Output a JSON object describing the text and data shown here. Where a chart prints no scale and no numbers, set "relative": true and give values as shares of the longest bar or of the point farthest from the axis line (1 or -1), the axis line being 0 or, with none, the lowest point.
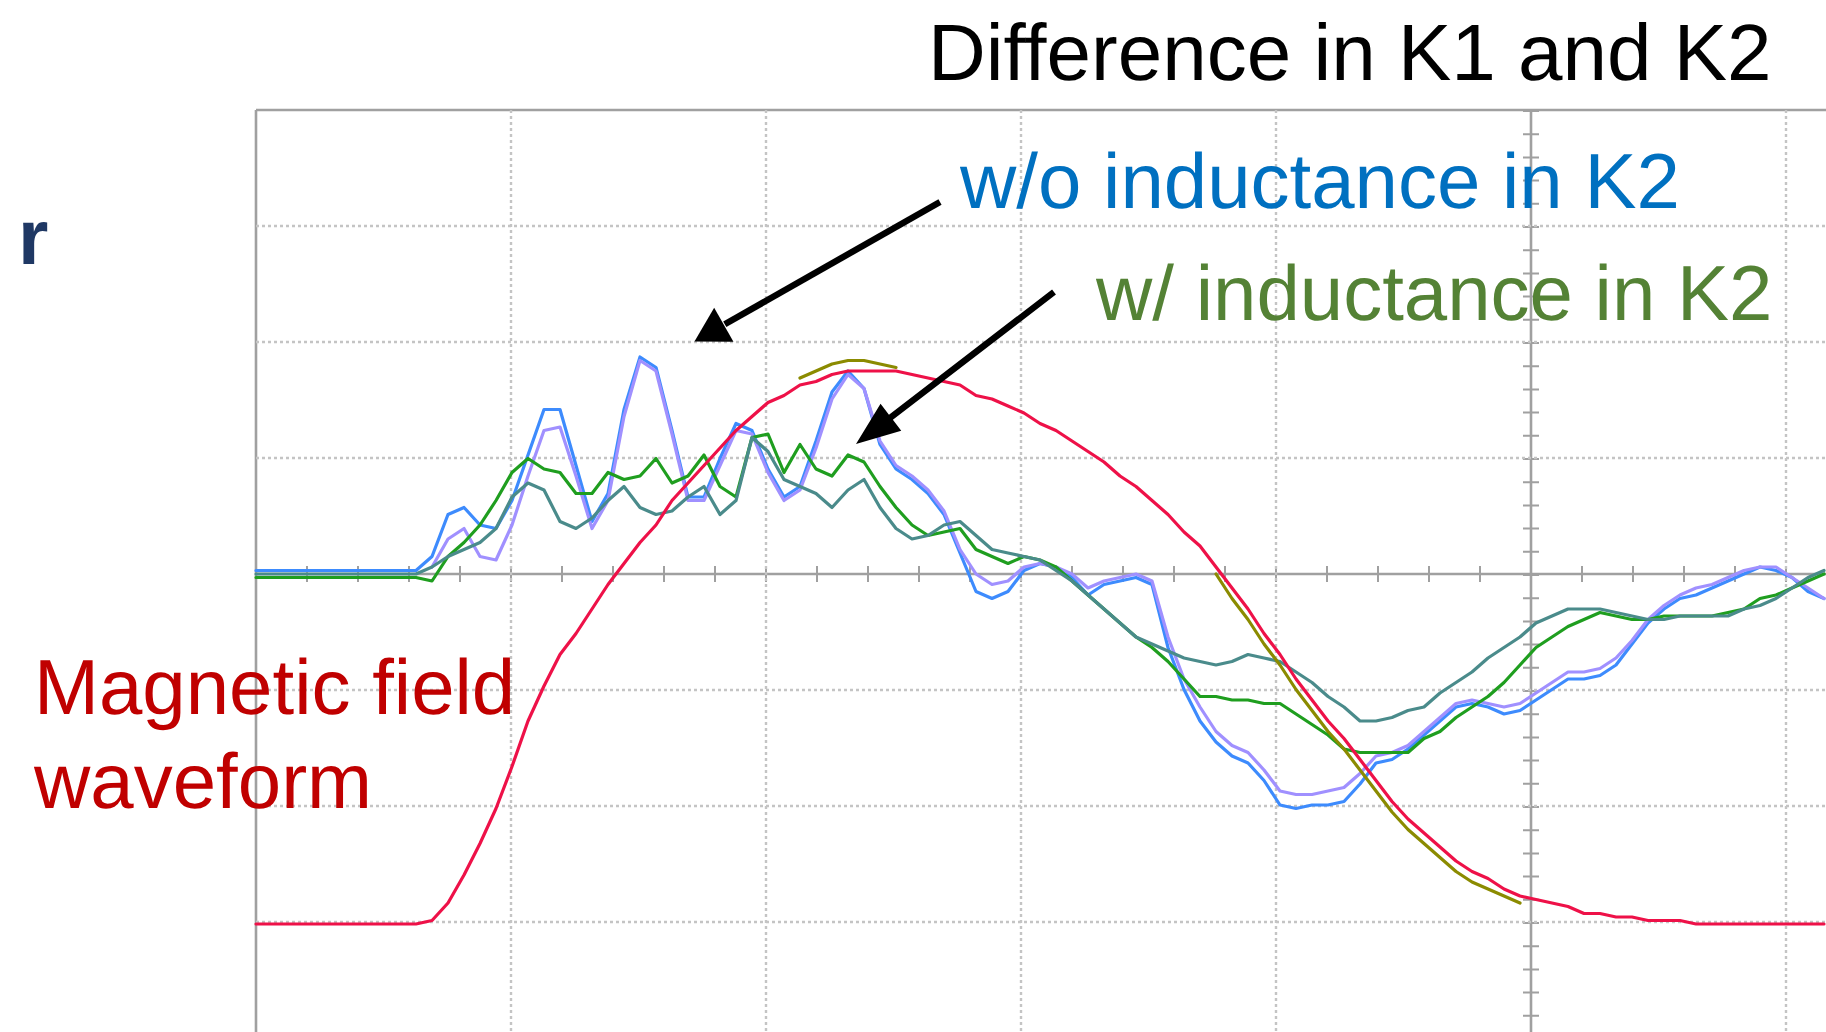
{
  "chart_data": {
    "type": "line",
    "title": "Difference in K1 and K2",
    "relative": true,
    "grid": true,
    "categories": [
      null,
      null,
      null,
      null,
      null,
      null,
      null,
      null,
      null,
      null,
      null,
      null,
      null,
      null,
      null,
      null,
      null,
      null,
      null,
      null,
      null,
      null,
      null,
      null,
      null,
      null,
      null,
      null,
      null,
      null,
      null,
      null,
      null,
      null,
      null,
      null,
      null,
      null,
      null,
      null,
      null,
      null,
      null,
      null,
      null,
      null,
      null,
      null,
      null,
      null,
      null,
      null,
      null,
      null,
      null,
      null,
      null,
      null,
      null,
      null,
      null,
      null,
      null,
      null,
      null,
      null,
      null,
      null,
      null,
      null,
      null,
      null,
      null,
      null,
      null,
      null,
      null,
      null,
      null,
      null,
      null,
      null,
      null,
      null,
      null,
      null,
      null,
      null,
      null,
      null,
      null,
      null,
      null,
      null,
      null,
      null,
      null,
      null,
      null
    ],
    "series": [
      {
        "color": "#3d8bfd",
        "values": [
          0.01,
          0.01,
          0.01,
          0.01,
          0.01,
          0.01,
          0.01,
          0.01,
          0.01,
          0.01,
          0.01,
          0.05,
          0.17,
          0.19,
          0.14,
          0.13,
          0.21,
          0.34,
          0.47,
          0.47,
          0.31,
          0.15,
          0.23,
          0.47,
          0.62,
          0.59,
          0.41,
          0.22,
          0.22,
          0.33,
          0.43,
          0.41,
          0.3,
          0.22,
          0.25,
          0.38,
          0.52,
          0.58,
          0.53,
          0.37,
          0.3,
          0.27,
          0.23,
          0.17,
          0.06,
          -0.05,
          -0.07,
          -0.05,
          0.01,
          0.03,
          0.02,
          -0.01,
          -0.06,
          -0.03,
          -0.02,
          -0.01,
          -0.03,
          -0.21,
          -0.33,
          -0.42,
          -0.48,
          -0.52,
          -0.54,
          -0.59,
          -0.66,
          -0.67,
          -0.66,
          -0.66,
          -0.65,
          -0.6,
          -0.54,
          -0.53,
          -0.5,
          -0.46,
          -0.42,
          -0.38,
          -0.37,
          -0.38,
          -0.4,
          -0.39,
          -0.36,
          -0.33,
          -0.3,
          -0.3,
          -0.29,
          -0.26,
          -0.2,
          -0.14,
          -0.1,
          -0.07,
          -0.06,
          -0.04,
          -0.02,
          0.0,
          0.02,
          0.01,
          -0.01,
          -0.05,
          -0.07
        ]
      },
      {
        "color": "#a090ff",
        "values": [
          null,
          null,
          null,
          null,
          null,
          null,
          null,
          null,
          null,
          null,
          null,
          0.02,
          0.1,
          0.13,
          0.05,
          0.04,
          0.14,
          0.28,
          0.41,
          0.42,
          0.28,
          0.13,
          0.21,
          0.45,
          0.61,
          0.58,
          0.4,
          0.21,
          0.21,
          0.31,
          0.41,
          0.4,
          0.29,
          0.21,
          0.24,
          0.36,
          0.5,
          0.57,
          0.53,
          0.38,
          0.31,
          0.28,
          0.24,
          0.18,
          0.07,
          0.0,
          -0.03,
          -0.02,
          0.02,
          0.03,
          0.02,
          0.0,
          -0.04,
          -0.02,
          -0.01,
          0.0,
          -0.02,
          -0.18,
          -0.3,
          -0.38,
          -0.45,
          -0.49,
          -0.51,
          -0.56,
          -0.62,
          -0.63,
          -0.63,
          -0.62,
          -0.61,
          -0.57,
          -0.52,
          -0.51,
          -0.49,
          -0.45,
          -0.41,
          -0.37,
          -0.36,
          -0.37,
          -0.38,
          -0.37,
          -0.34,
          -0.31,
          -0.28,
          -0.28,
          -0.27,
          -0.24,
          -0.19,
          -0.13,
          -0.09,
          -0.06,
          -0.04,
          -0.03,
          -0.01,
          0.01,
          0.02,
          0.02,
          -0.01,
          -0.04,
          -0.07
        ]
      },
      {
        "color": "#1f9e1f",
        "values": [
          -0.01,
          -0.01,
          -0.01,
          -0.01,
          -0.01,
          -0.01,
          -0.01,
          -0.01,
          -0.01,
          -0.01,
          -0.01,
          -0.02,
          0.05,
          0.09,
          0.14,
          0.21,
          0.29,
          0.33,
          0.3,
          0.29,
          0.23,
          0.23,
          0.29,
          0.27,
          0.28,
          0.33,
          0.26,
          0.28,
          0.34,
          0.25,
          0.22,
          0.39,
          0.4,
          0.29,
          0.37,
          0.3,
          0.28,
          0.34,
          0.32,
          0.25,
          0.19,
          0.14,
          0.11,
          0.12,
          0.13,
          0.07,
          0.05,
          0.03,
          0.05,
          0.04,
          0.02,
          -0.02,
          -0.06,
          -0.1,
          -0.14,
          -0.18,
          -0.21,
          -0.25,
          -0.3,
          -0.35,
          -0.35,
          -0.36,
          -0.36,
          -0.37,
          -0.37,
          -0.4,
          -0.43,
          -0.46,
          -0.5,
          -0.51,
          -0.51,
          -0.51,
          -0.51,
          -0.47,
          -0.45,
          -0.41,
          -0.38,
          -0.35,
          -0.31,
          -0.26,
          -0.21,
          -0.18,
          -0.15,
          -0.13,
          -0.11,
          -0.12,
          -0.13,
          -0.13,
          -0.12,
          -0.12,
          -0.12,
          -0.12,
          -0.11,
          -0.1,
          -0.07,
          -0.06,
          -0.04,
          -0.02,
          0.0
        ]
      },
      {
        "color": "#4a8b8b",
        "values": [
          0,
          0,
          0,
          0,
          0,
          0,
          0,
          0,
          0,
          0,
          0,
          0.02,
          0.05,
          0.07,
          0.09,
          0.13,
          0.22,
          0.26,
          0.24,
          0.15,
          0.13,
          0.16,
          0.21,
          0.25,
          0.19,
          0.17,
          0.18,
          0.22,
          0.25,
          0.17,
          0.21,
          0.39,
          0.35,
          0.27,
          0.25,
          0.23,
          0.19,
          0.24,
          0.27,
          0.19,
          0.13,
          0.1,
          0.11,
          0.14,
          0.15,
          0.11,
          0.07,
          0.06,
          0.05,
          0.04,
          0.01,
          -0.02,
          -0.06,
          -0.1,
          -0.14,
          -0.18,
          -0.2,
          -0.22,
          -0.24,
          -0.25,
          -0.26,
          -0.25,
          -0.23,
          -0.24,
          -0.25,
          -0.28,
          -0.31,
          -0.35,
          -0.38,
          -0.42,
          -0.42,
          -0.41,
          -0.39,
          -0.38,
          -0.34,
          -0.31,
          -0.28,
          -0.24,
          -0.21,
          -0.18,
          -0.14,
          -0.12,
          -0.1,
          -0.1,
          -0.1,
          -0.11,
          -0.12,
          -0.13,
          -0.13,
          -0.12,
          -0.12,
          -0.12,
          -0.12,
          -0.1,
          -0.09,
          -0.07,
          -0.04,
          -0.01,
          0.01
        ]
      },
      {
        "color": "#8b8b00",
        "values": [
          null,
          null,
          null,
          null,
          null,
          null,
          null,
          null,
          null,
          null,
          null,
          null,
          null,
          null,
          null,
          null,
          null,
          null,
          null,
          null,
          null,
          null,
          null,
          null,
          null,
          null,
          null,
          null,
          null,
          null,
          null,
          null,
          null,
          null,
          0.56,
          0.58,
          0.6,
          0.61,
          0.61,
          0.6,
          0.59,
          null,
          null,
          null,
          null,
          null,
          null,
          null,
          null,
          null,
          null,
          null,
          null,
          null,
          null,
          null,
          null,
          null,
          null,
          null,
          0.0,
          -0.07,
          -0.13,
          -0.2,
          -0.26,
          -0.33,
          -0.39,
          -0.45,
          -0.5,
          -0.56,
          -0.62,
          -0.68,
          -0.73,
          -0.77,
          -0.81,
          -0.85,
          -0.88,
          -0.9,
          -0.92,
          -0.94,
          null,
          null,
          null,
          null,
          null,
          null,
          null,
          null,
          null,
          null,
          null,
          null,
          null,
          null,
          null,
          null,
          null,
          null,
          null
        ]
      },
      {
        "color": "#ee1148",
        "values": [
          -1,
          -1,
          -1,
          -1,
          -1,
          -1,
          -1,
          -1,
          -1,
          -1,
          -1,
          -0.99,
          -0.94,
          -0.86,
          -0.77,
          -0.67,
          -0.55,
          -0.42,
          -0.32,
          -0.23,
          -0.17,
          -0.1,
          -0.03,
          0.03,
          0.09,
          0.14,
          0.21,
          0.26,
          0.31,
          0.36,
          0.41,
          0.45,
          0.49,
          0.51,
          0.54,
          0.55,
          0.57,
          0.58,
          0.58,
          0.58,
          0.58,
          0.57,
          0.56,
          0.55,
          0.54,
          0.51,
          0.5,
          0.48,
          0.46,
          0.43,
          0.41,
          0.38,
          0.35,
          0.32,
          0.28,
          0.25,
          0.21,
          0.17,
          0.12,
          0.08,
          0.02,
          -0.04,
          -0.1,
          -0.17,
          -0.23,
          -0.3,
          -0.36,
          -0.42,
          -0.47,
          -0.53,
          -0.59,
          -0.65,
          -0.7,
          -0.74,
          -0.78,
          -0.82,
          -0.85,
          -0.87,
          -0.9,
          -0.92,
          -0.93,
          -0.94,
          -0.95,
          -0.97,
          -0.97,
          -0.98,
          -0.98,
          -0.99,
          -0.99,
          -0.99,
          -1,
          -1,
          -1,
          -1,
          -1,
          -1,
          -1,
          -1,
          -1
        ]
      }
    ],
    "annotations": [
      "w/o inductance in K2",
      "w/ inductance in K2",
      "Magnetic field\nwaveform",
      "r"
    ]
  }
}
